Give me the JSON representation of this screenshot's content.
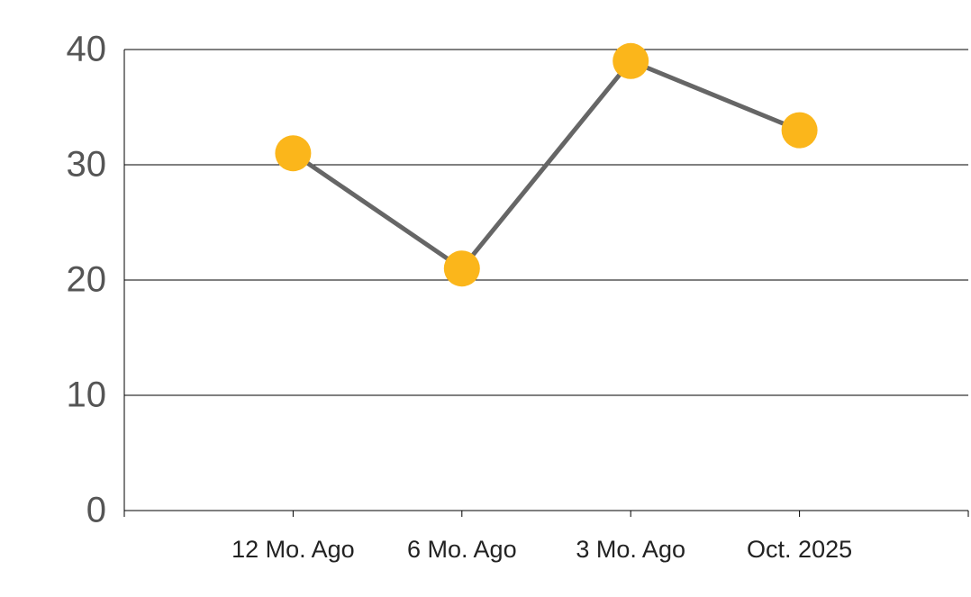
{
  "chart_data": {
    "type": "line",
    "categories": [
      "12 Mo. Ago",
      "6 Mo. Ago",
      "3 Mo. Ago",
      "Oct. 2025"
    ],
    "values": [
      31,
      21,
      39,
      33
    ],
    "color": "#666666",
    "marker_color": "#fbb61b",
    "ylim": [
      0,
      40
    ],
    "yticks": [
      0,
      10,
      20,
      30,
      40
    ],
    "grid": true
  }
}
